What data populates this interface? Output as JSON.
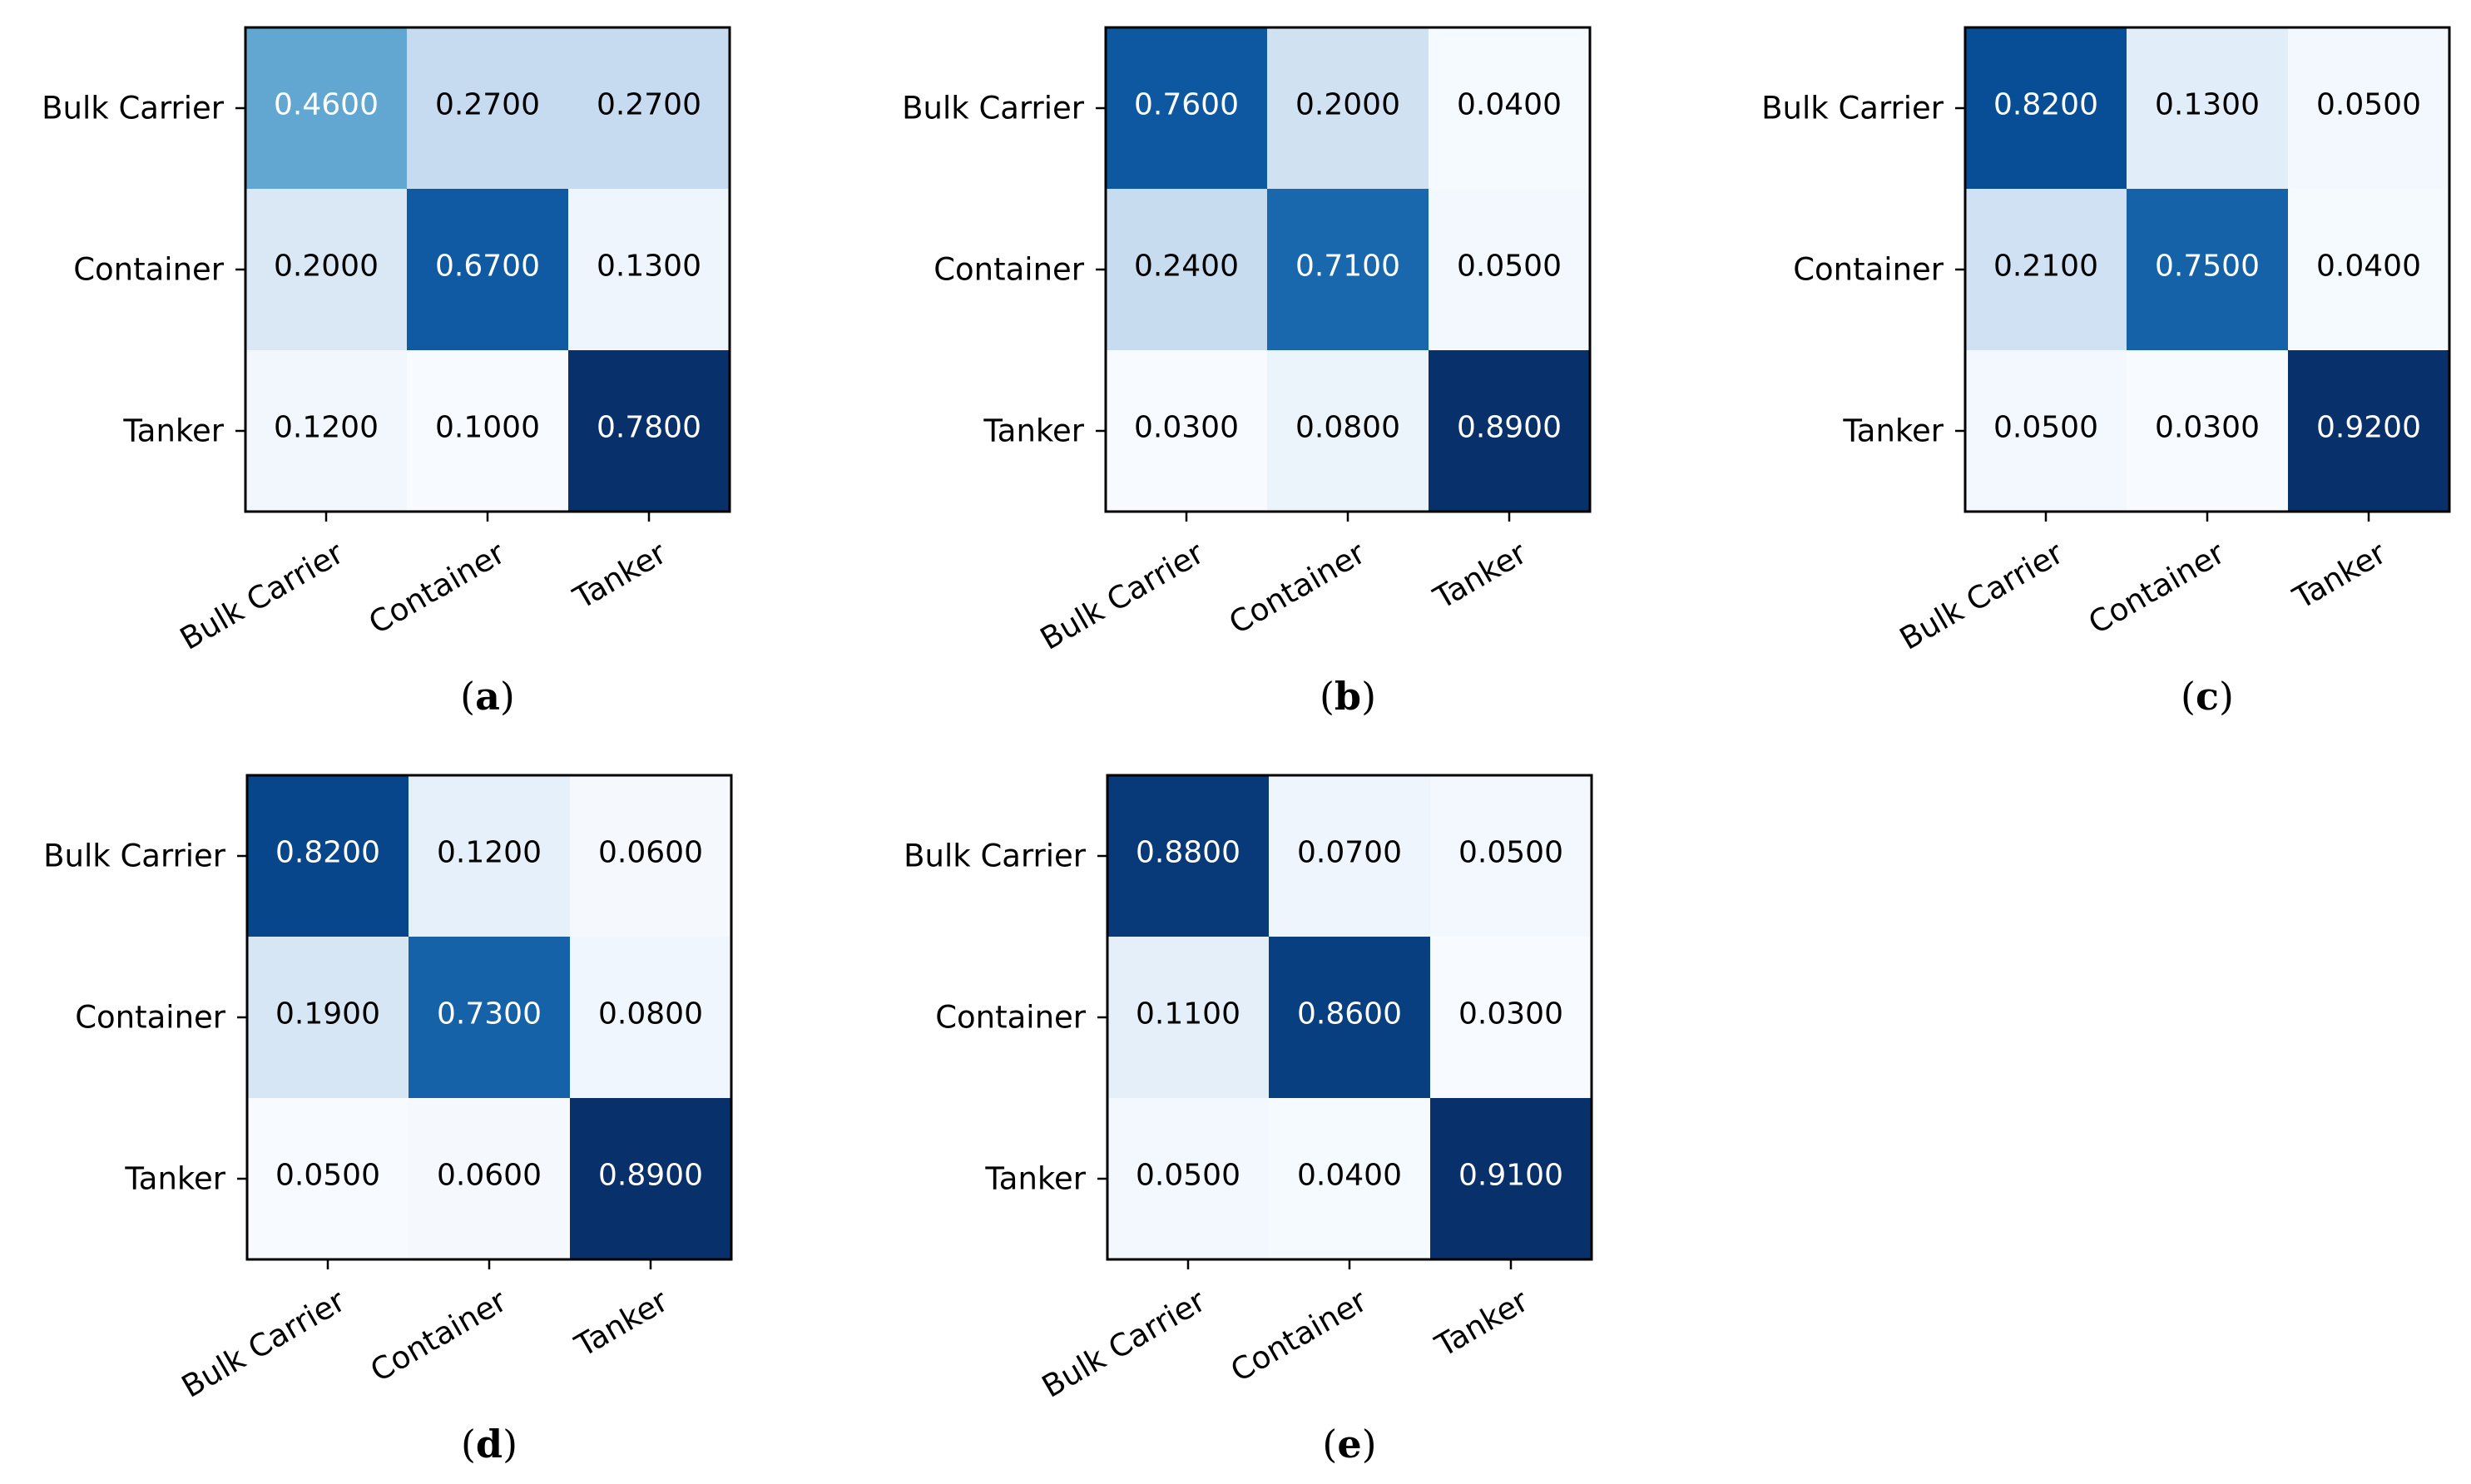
{
  "figure": {
    "colormap": [
      "#f7fbff",
      "#deebf7",
      "#c6dbef",
      "#9ecae1",
      "#6baed6",
      "#4292c6",
      "#2171b5",
      "#08519c",
      "#08306b"
    ],
    "text_light": "#ffffff",
    "text_dark": "#000000",
    "frame_color": "#000000"
  },
  "chart_data": [
    {
      "type": "heatmap",
      "panel": "a",
      "paren_open": "(",
      "paren_close": ")",
      "rows": [
        "Bulk Carrier",
        "Container",
        "Tanker"
      ],
      "cols": [
        "Bulk Carrier",
        "Container",
        "Tanker"
      ],
      "values": [
        [
          0.46,
          0.27,
          0.27
        ],
        [
          0.2,
          0.67,
          0.13
        ],
        [
          0.12,
          0.1,
          0.78
        ]
      ],
      "value_labels": [
        [
          "0.4600",
          "0.2700",
          "0.2700"
        ],
        [
          "0.2000",
          "0.6700",
          "0.1300"
        ],
        [
          "0.1200",
          "0.1000",
          "0.7800"
        ]
      ],
      "vmin": 0.1,
      "vmax": 0.78
    },
    {
      "type": "heatmap",
      "panel": "b",
      "paren_open": "(",
      "paren_close": ")",
      "rows": [
        "Bulk Carrier",
        "Container",
        "Tanker"
      ],
      "cols": [
        "Bulk Carrier",
        "Container",
        "Tanker"
      ],
      "values": [
        [
          0.76,
          0.2,
          0.04
        ],
        [
          0.24,
          0.71,
          0.05
        ],
        [
          0.03,
          0.08,
          0.89
        ]
      ],
      "value_labels": [
        [
          "0.7600",
          "0.2000",
          "0.0400"
        ],
        [
          "0.2400",
          "0.7100",
          "0.0500"
        ],
        [
          "0.0300",
          "0.0800",
          "0.8900"
        ]
      ],
      "vmin": 0.03,
      "vmax": 0.89
    },
    {
      "type": "heatmap",
      "panel": "c",
      "paren_open": "(",
      "paren_close": ")",
      "rows": [
        "Bulk Carrier",
        "Container",
        "Tanker"
      ],
      "cols": [
        "Bulk Carrier",
        "Container",
        "Tanker"
      ],
      "values": [
        [
          0.82,
          0.13,
          0.05
        ],
        [
          0.21,
          0.75,
          0.04
        ],
        [
          0.05,
          0.03,
          0.92
        ]
      ],
      "value_labels": [
        [
          "0.8200",
          "0.1300",
          "0.0500"
        ],
        [
          "0.2100",
          "0.7500",
          "0.0400"
        ],
        [
          "0.0500",
          "0.0300",
          "0.9200"
        ]
      ],
      "vmin": 0.03,
      "vmax": 0.92
    },
    {
      "type": "heatmap",
      "panel": "d",
      "paren_open": "(",
      "paren_close": ")",
      "rows": [
        "Bulk Carrier",
        "Container",
        "Tanker"
      ],
      "cols": [
        "Bulk Carrier",
        "Container",
        "Tanker"
      ],
      "values": [
        [
          0.82,
          0.12,
          0.06
        ],
        [
          0.19,
          0.73,
          0.08
        ],
        [
          0.05,
          0.06,
          0.89
        ]
      ],
      "value_labels": [
        [
          "0.8200",
          "0.1200",
          "0.0600"
        ],
        [
          "0.1900",
          "0.7300",
          "0.0800"
        ],
        [
          "0.0500",
          "0.0600",
          "0.8900"
        ]
      ],
      "vmin": 0.05,
      "vmax": 0.89
    },
    {
      "type": "heatmap",
      "panel": "e",
      "paren_open": "(",
      "paren_close": ")",
      "rows": [
        "Bulk Carrier",
        "Container",
        "Tanker"
      ],
      "cols": [
        "Bulk Carrier",
        "Container",
        "Tanker"
      ],
      "values": [
        [
          0.88,
          0.07,
          0.05
        ],
        [
          0.11,
          0.86,
          0.03
        ],
        [
          0.05,
          0.04,
          0.91
        ]
      ],
      "value_labels": [
        [
          "0.8800",
          "0.0700",
          "0.0500"
        ],
        [
          "0.1100",
          "0.8600",
          "0.0300"
        ],
        [
          "0.0500",
          "0.0400",
          "0.9100"
        ]
      ],
      "vmin": 0.03,
      "vmax": 0.91
    }
  ]
}
